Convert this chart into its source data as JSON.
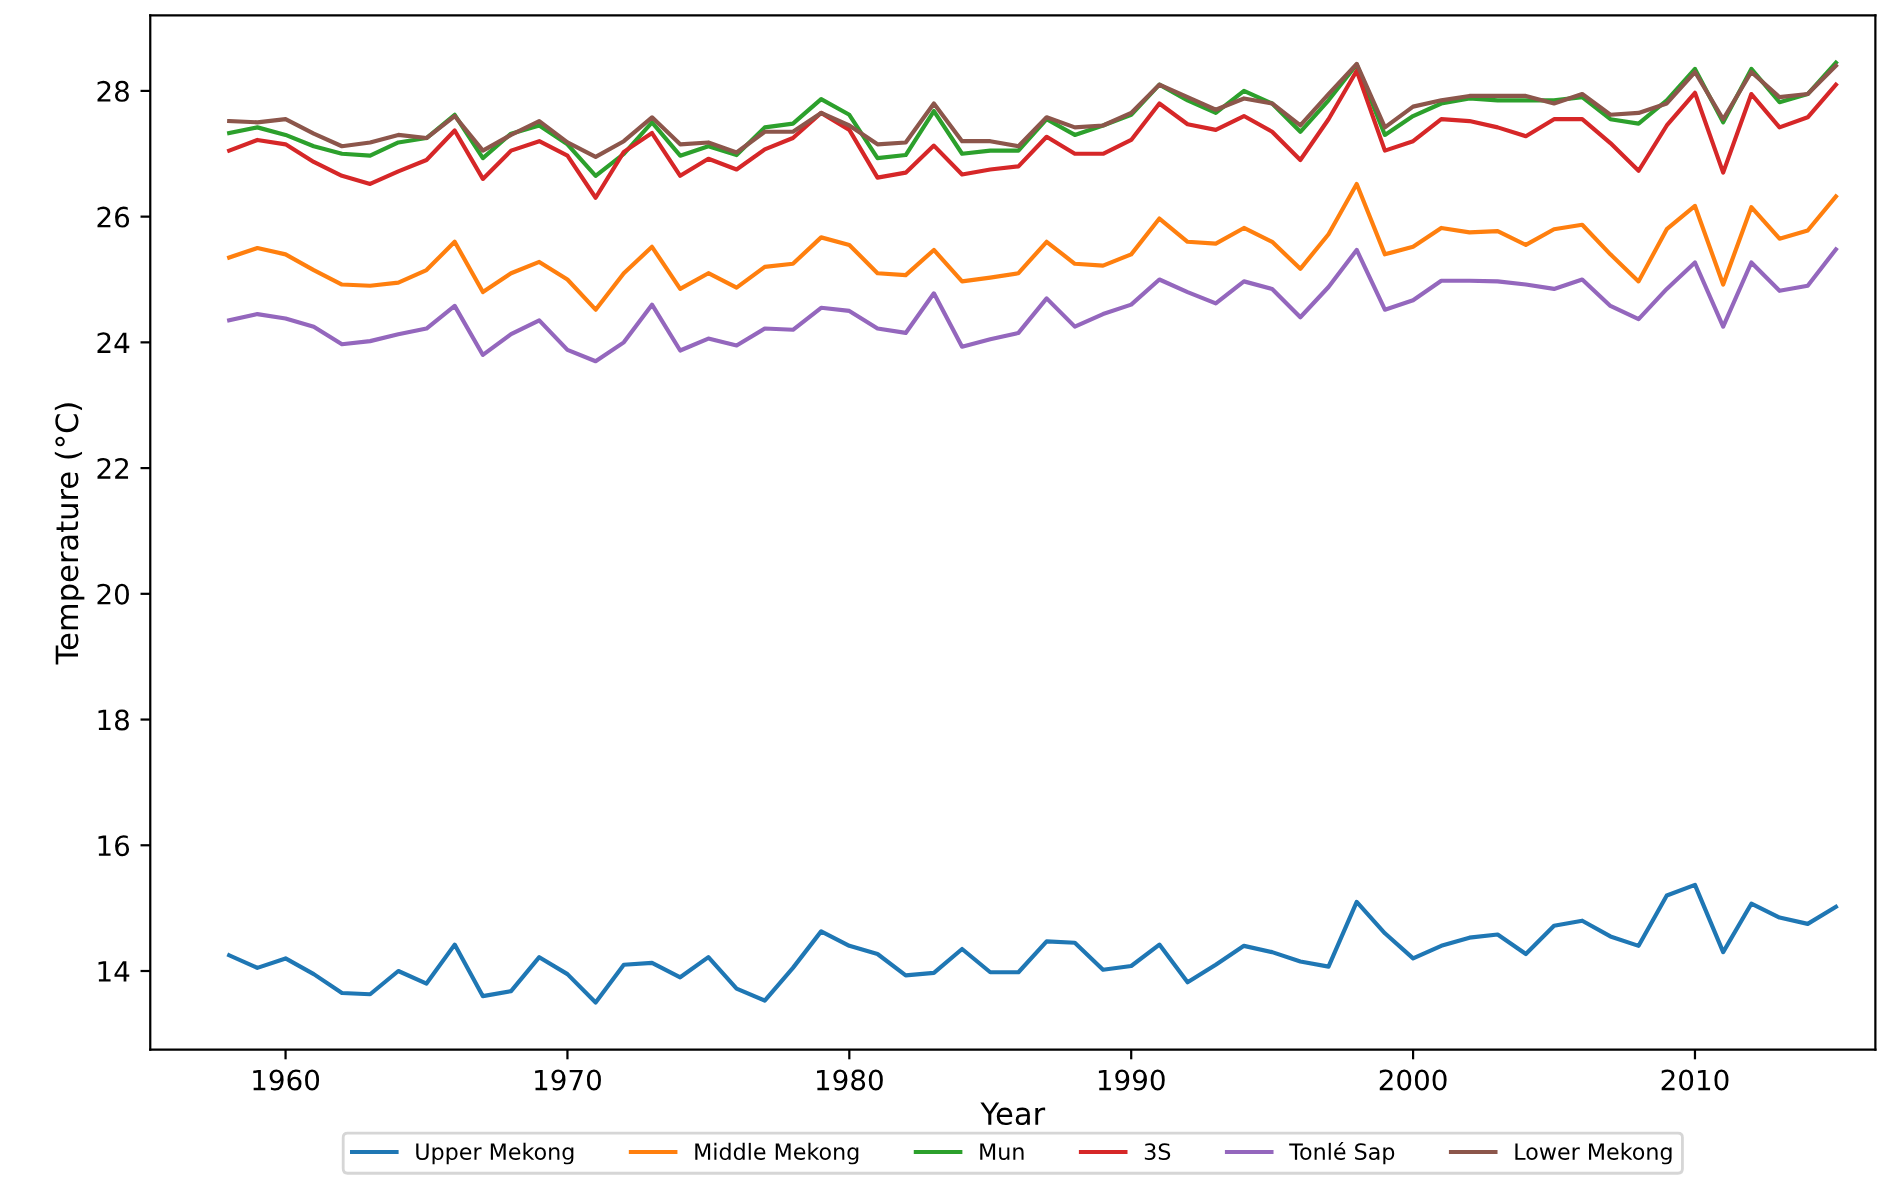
{
  "chart_data": {
    "type": "line",
    "xlabel": "Year",
    "ylabel": "Temperature (°C)",
    "x": [
      1958,
      1959,
      1960,
      1961,
      1962,
      1963,
      1964,
      1965,
      1966,
      1967,
      1968,
      1969,
      1970,
      1971,
      1972,
      1973,
      1974,
      1975,
      1976,
      1977,
      1978,
      1979,
      1980,
      1981,
      1982,
      1983,
      1984,
      1985,
      1986,
      1987,
      1988,
      1989,
      1990,
      1991,
      1992,
      1993,
      1994,
      1995,
      1996,
      1997,
      1998,
      1999,
      2000,
      2001,
      2002,
      2003,
      2004,
      2005,
      2006,
      2007,
      2008,
      2009,
      2010,
      2011,
      2012,
      2013,
      2014,
      2015
    ],
    "xlim": [
      1955.2,
      2016.4
    ],
    "xticks": [
      1960,
      1970,
      1980,
      1990,
      2000,
      2010
    ],
    "ylim": [
      12.75,
      29.2
    ],
    "yticks": [
      14,
      16,
      18,
      20,
      22,
      24,
      26,
      28
    ],
    "grid": false,
    "legend": "bottom",
    "marker": "none",
    "line_style": "solid",
    "series": [
      {
        "name": "Upper Mekong",
        "color": "#1f77b4",
        "values": [
          14.25,
          14.05,
          14.2,
          13.95,
          13.65,
          13.63,
          14.0,
          13.8,
          14.42,
          13.6,
          13.68,
          14.22,
          13.95,
          13.5,
          14.1,
          14.13,
          13.9,
          14.22,
          13.72,
          13.53,
          14.05,
          14.63,
          14.4,
          14.27,
          13.93,
          13.97,
          14.35,
          13.98,
          13.98,
          14.47,
          14.45,
          14.02,
          14.08,
          14.42,
          13.82,
          14.1,
          14.4,
          14.3,
          14.15,
          14.07,
          15.1,
          14.6,
          14.2,
          14.4,
          14.53,
          14.58,
          14.27,
          14.72,
          14.8,
          14.55,
          14.4,
          15.2,
          15.37,
          14.3,
          15.07,
          14.85,
          14.75,
          15.02
        ]
      },
      {
        "name": "Middle Mekong",
        "color": "#ff7f0e",
        "values": [
          25.35,
          25.5,
          25.4,
          25.15,
          24.92,
          24.9,
          24.95,
          25.15,
          25.6,
          24.8,
          25.1,
          25.28,
          25.0,
          24.52,
          25.1,
          25.52,
          24.85,
          25.1,
          24.87,
          25.2,
          25.25,
          25.67,
          25.55,
          25.1,
          25.07,
          25.47,
          24.97,
          25.03,
          25.1,
          25.6,
          25.25,
          25.22,
          25.4,
          25.97,
          25.6,
          25.57,
          25.82,
          25.6,
          25.17,
          25.72,
          26.52,
          25.4,
          25.52,
          25.82,
          25.75,
          25.77,
          25.55,
          25.8,
          25.87,
          25.4,
          24.97,
          25.8,
          26.17,
          24.92,
          26.15,
          25.65,
          25.78,
          26.32
        ]
      },
      {
        "name": "Mun",
        "color": "#2ca02c",
        "values": [
          27.33,
          27.42,
          27.3,
          27.12,
          27.0,
          26.97,
          27.18,
          27.25,
          27.62,
          26.93,
          27.32,
          27.45,
          27.15,
          26.65,
          27.0,
          27.5,
          26.97,
          27.12,
          26.98,
          27.42,
          27.48,
          27.87,
          27.62,
          26.93,
          26.98,
          27.68,
          27.0,
          27.05,
          27.05,
          27.55,
          27.3,
          27.45,
          27.62,
          28.1,
          27.85,
          27.65,
          28.0,
          27.8,
          27.35,
          27.85,
          28.42,
          27.3,
          27.6,
          27.8,
          27.88,
          27.85,
          27.85,
          27.85,
          27.9,
          27.55,
          27.48,
          27.85,
          28.35,
          27.5,
          28.35,
          27.82,
          27.95,
          28.45
        ]
      },
      {
        "name": "3S",
        "color": "#d62728",
        "values": [
          27.05,
          27.22,
          27.15,
          26.87,
          26.65,
          26.52,
          26.72,
          26.9,
          27.37,
          26.6,
          27.05,
          27.2,
          26.97,
          26.3,
          27.03,
          27.33,
          26.65,
          26.92,
          26.75,
          27.07,
          27.25,
          27.65,
          27.38,
          26.62,
          26.7,
          27.13,
          26.67,
          26.75,
          26.8,
          27.27,
          27.0,
          27.0,
          27.22,
          27.8,
          27.47,
          27.38,
          27.6,
          27.35,
          26.9,
          27.55,
          28.32,
          27.05,
          27.2,
          27.55,
          27.52,
          27.42,
          27.28,
          27.55,
          27.55,
          27.17,
          26.73,
          27.45,
          27.97,
          26.7,
          27.95,
          27.42,
          27.58,
          28.1
        ]
      },
      {
        "name": "Tonlé Sap",
        "color": "#9467bd",
        "values": [
          24.35,
          24.45,
          24.38,
          24.25,
          23.97,
          24.02,
          24.13,
          24.22,
          24.58,
          23.8,
          24.13,
          24.35,
          23.88,
          23.7,
          24.0,
          24.6,
          23.87,
          24.06,
          23.95,
          24.22,
          24.2,
          24.55,
          24.5,
          24.22,
          24.15,
          24.78,
          23.93,
          24.05,
          24.15,
          24.7,
          24.25,
          24.45,
          24.6,
          25.0,
          24.8,
          24.62,
          24.97,
          24.85,
          24.4,
          24.88,
          25.47,
          24.52,
          24.67,
          24.98,
          24.98,
          24.97,
          24.92,
          24.85,
          25.0,
          24.58,
          24.37,
          24.85,
          25.27,
          24.25,
          25.27,
          24.82,
          24.9,
          25.48
        ]
      },
      {
        "name": "Lower Mekong",
        "color": "#8c564b",
        "values": [
          27.52,
          27.5,
          27.55,
          27.32,
          27.12,
          27.18,
          27.3,
          27.25,
          27.6,
          27.05,
          27.3,
          27.52,
          27.18,
          26.95,
          27.2,
          27.58,
          27.15,
          27.18,
          27.02,
          27.35,
          27.35,
          27.65,
          27.45,
          27.15,
          27.18,
          27.8,
          27.2,
          27.2,
          27.12,
          27.58,
          27.42,
          27.45,
          27.65,
          28.1,
          27.9,
          27.7,
          27.88,
          27.8,
          27.45,
          27.95,
          28.43,
          27.42,
          27.75,
          27.85,
          27.92,
          27.92,
          27.92,
          27.8,
          27.95,
          27.62,
          27.65,
          27.8,
          28.3,
          27.55,
          28.3,
          27.9,
          27.95,
          28.4
        ]
      }
    ]
  }
}
